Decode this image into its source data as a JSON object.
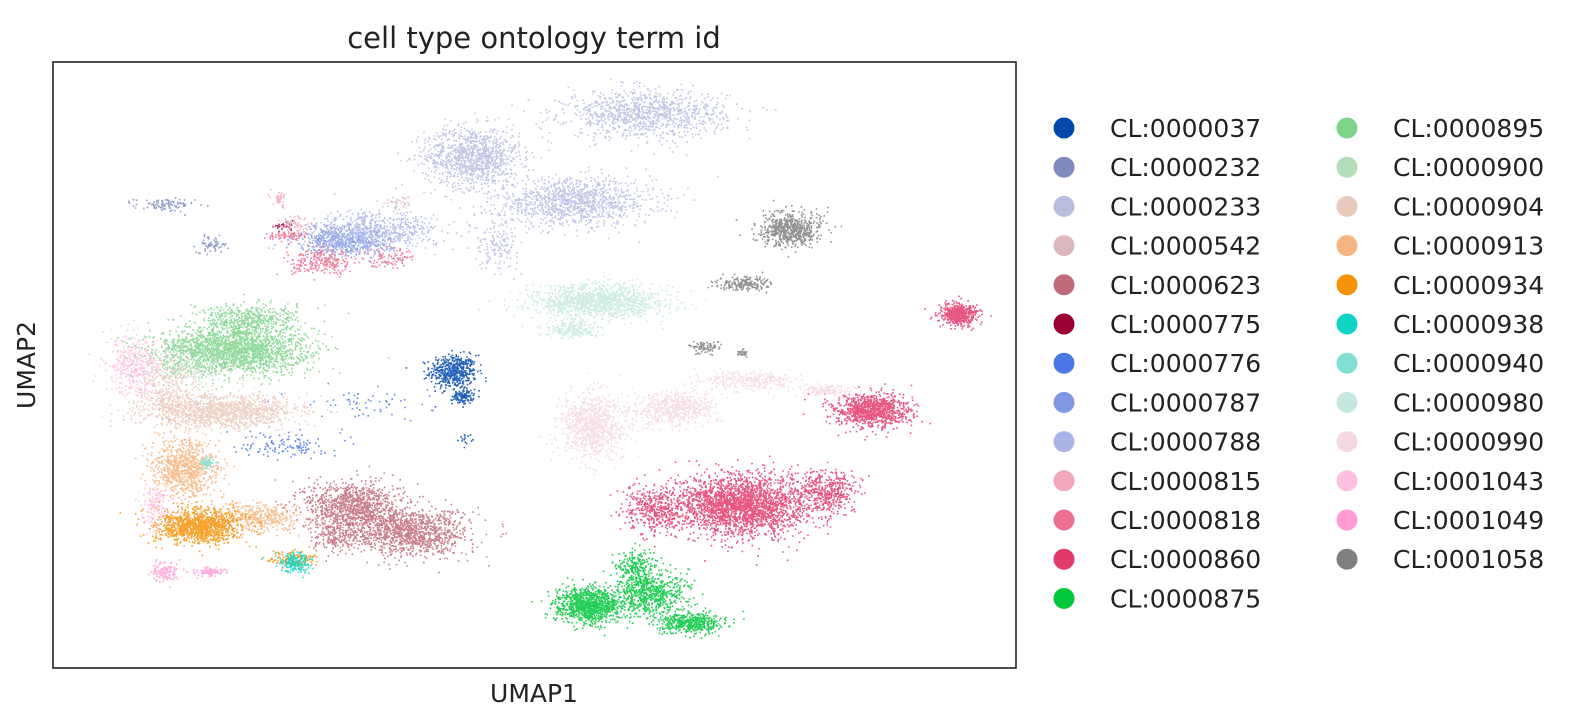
{
  "chart_data": {
    "type": "scatter",
    "title": "cell type ontology term id",
    "xlabel": "UMAP1",
    "ylabel": "UMAP2",
    "xlim": [
      0,
      100
    ],
    "ylim": [
      0,
      100
    ],
    "grid": false,
    "ticks_shown": false,
    "legend_placement": "right, two columns",
    "series": [
      {
        "name": "CL:0000037",
        "color": "#0047ab",
        "clusters": [
          [
            41.5,
            49.0,
            2.2,
            2.5,
            500
          ],
          [
            42.5,
            45.0,
            1.0,
            1.2,
            120
          ],
          [
            42.8,
            38.0,
            0.6,
            0.7,
            15
          ]
        ]
      },
      {
        "name": "CL:0000232",
        "color": "#7f8bc0",
        "clusters": [
          [
            11.5,
            76.5,
            2.8,
            1.0,
            90
          ],
          [
            16.5,
            70.0,
            1.5,
            1.2,
            60
          ]
        ]
      },
      {
        "name": "CL:0000233",
        "color": "#b9bde0",
        "clusters": [
          [
            43.5,
            84.5,
            4.5,
            4.5,
            1100
          ],
          [
            54.0,
            77.0,
            7.5,
            3.5,
            1200
          ],
          [
            61.5,
            91.5,
            7.5,
            3.5,
            1100
          ],
          [
            46.0,
            70.0,
            2.0,
            3.5,
            150
          ]
        ]
      },
      {
        "name": "CL:0000542",
        "color": "#dcb8be",
        "clusters": [
          [
            36.0,
            77.0,
            1.5,
            1.0,
            40
          ]
        ]
      },
      {
        "name": "CL:0000623",
        "color": "#c06b7b",
        "clusters": [
          [
            31.0,
            27.0,
            4.5,
            3.5,
            1000
          ],
          [
            37.0,
            22.5,
            5.5,
            3.5,
            1200
          ],
          [
            29.5,
            22.0,
            2.5,
            2.5,
            250
          ]
        ]
      },
      {
        "name": "CL:0000775",
        "color": "#9b0034",
        "clusters": [
          [
            24.0,
            73.0,
            1.0,
            1.0,
            25
          ]
        ]
      },
      {
        "name": "CL:0000776",
        "color": "#4b76e6",
        "clusters": [
          [
            24.0,
            37.0,
            4.0,
            2.0,
            120
          ],
          [
            33.0,
            44.0,
            6.0,
            2.5,
            60
          ]
        ]
      },
      {
        "name": "CL:0000787",
        "color": "#7f98e2",
        "clusters": [
          [
            30.0,
            70.5,
            4.5,
            2.2,
            500
          ]
        ]
      },
      {
        "name": "CL:0000788",
        "color": "#aab4e8",
        "clusters": [
          [
            33.0,
            72.0,
            6.0,
            3.0,
            700
          ]
        ]
      },
      {
        "name": "CL:0000815",
        "color": "#f2a6ba",
        "clusters": [
          [
            25.0,
            73.0,
            1.5,
            1.5,
            60
          ],
          [
            23.5,
            77.5,
            0.7,
            1.2,
            40
          ]
        ]
      },
      {
        "name": "CL:0000818",
        "color": "#ee7090",
        "clusters": [
          [
            28.0,
            67.0,
            3.0,
            1.8,
            250
          ],
          [
            24.0,
            71.5,
            2.0,
            0.6,
            70
          ],
          [
            35.0,
            68.0,
            2.5,
            1.5,
            90
          ]
        ]
      },
      {
        "name": "CL:0000860",
        "color": "#e33a6c",
        "clusters": [
          [
            71.5,
            27.0,
            6.5,
            4.5,
            2600
          ],
          [
            80.5,
            29.5,
            2.8,
            3.0,
            400
          ],
          [
            85.0,
            42.5,
            3.5,
            2.5,
            1000
          ],
          [
            94.0,
            58.5,
            1.8,
            1.6,
            550
          ],
          [
            62.5,
            26.0,
            3.0,
            3.5,
            400
          ]
        ]
      },
      {
        "name": "CL:0000875",
        "color": "#00c73b",
        "clusters": [
          [
            55.5,
            10.5,
            3.0,
            2.5,
            1100
          ],
          [
            62.0,
            12.5,
            3.5,
            3.5,
            700
          ],
          [
            66.0,
            7.5,
            3.0,
            1.5,
            500
          ],
          [
            60.5,
            17.0,
            2.0,
            2.5,
            200
          ]
        ]
      },
      {
        "name": "CL:0000895",
        "color": "#7fd48c",
        "clusters": [
          [
            18.5,
            52.5,
            7.0,
            3.5,
            2000
          ],
          [
            20.0,
            57.5,
            4.5,
            2.5,
            500
          ]
        ]
      },
      {
        "name": "CL:0000900",
        "color": "#b5dcb9",
        "clusters": [
          [
            14.0,
            50.0,
            4.5,
            3.0,
            250
          ]
        ]
      },
      {
        "name": "CL:0000904",
        "color": "#eac9bd",
        "clusters": [
          [
            17.5,
            42.5,
            7.0,
            2.5,
            1300
          ],
          [
            12.0,
            46.0,
            3.0,
            5.0,
            300
          ]
        ]
      },
      {
        "name": "CL:0000913",
        "color": "#f5b580",
        "clusters": [
          [
            13.5,
            33.0,
            3.0,
            4.5,
            900
          ],
          [
            21.5,
            25.0,
            4.0,
            2.0,
            400
          ]
        ]
      },
      {
        "name": "CL:0000934",
        "color": "#f59209",
        "clusters": [
          [
            15.0,
            23.5,
            4.0,
            2.5,
            1200
          ],
          [
            25.0,
            18.0,
            2.0,
            1.2,
            150
          ]
        ]
      },
      {
        "name": "CL:0000938",
        "color": "#0fd3c3",
        "clusters": [
          [
            25.0,
            17.5,
            1.5,
            1.5,
            200
          ]
        ]
      },
      {
        "name": "CL:0000940",
        "color": "#7fdfd2",
        "clusters": [
          [
            16.0,
            34.0,
            0.7,
            1.0,
            60
          ]
        ]
      },
      {
        "name": "CL:0000980",
        "color": "#c5e7df",
        "clusters": [
          [
            56.5,
            60.5,
            6.0,
            2.5,
            1300
          ],
          [
            54.0,
            56.0,
            2.5,
            1.2,
            200
          ]
        ]
      },
      {
        "name": "CL:0000990",
        "color": "#f4d8e2",
        "clusters": [
          [
            56.0,
            40.0,
            3.0,
            5.0,
            900
          ],
          [
            64.5,
            43.0,
            4.0,
            2.5,
            600
          ],
          [
            72.0,
            47.5,
            4.5,
            1.5,
            300
          ],
          [
            80.0,
            46.0,
            2.5,
            0.8,
            150
          ]
        ]
      },
      {
        "name": "CL:0001043",
        "color": "#ffbfe0",
        "clusters": [
          [
            8.5,
            50.0,
            2.5,
            5.0,
            400
          ],
          [
            10.5,
            27.0,
            1.2,
            3.5,
            150
          ]
        ]
      },
      {
        "name": "CL:0001049",
        "color": "#ff9bd2",
        "clusters": [
          [
            11.5,
            16.0,
            1.5,
            1.5,
            120
          ],
          [
            16.5,
            16.0,
            1.5,
            0.7,
            80
          ]
        ]
      },
      {
        "name": "CL:0001058",
        "color": "#7f7f7f",
        "clusters": [
          [
            76.5,
            72.5,
            3.0,
            2.5,
            650
          ],
          [
            71.5,
            63.5,
            2.5,
            1.0,
            200
          ],
          [
            67.5,
            53.0,
            1.5,
            1.0,
            80
          ],
          [
            71.5,
            52.0,
            0.5,
            0.6,
            25
          ]
        ]
      }
    ]
  }
}
